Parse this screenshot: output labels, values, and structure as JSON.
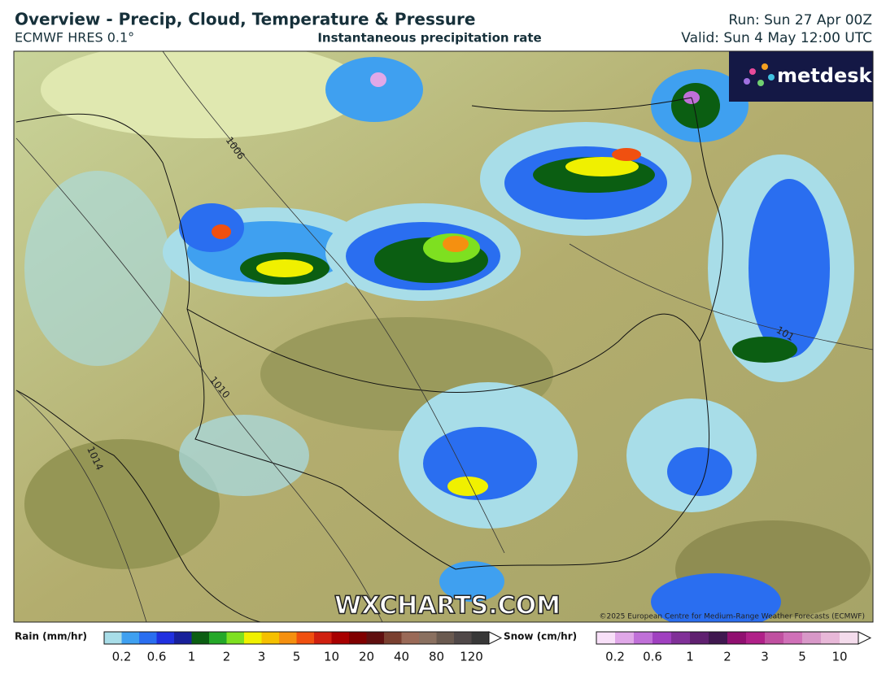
{
  "header": {
    "title": "Overview - Precip, Cloud, Temperature & Pressure",
    "model": "ECMWF HRES 0.1°",
    "layer": "Instantaneous precipitation rate",
    "run": "Run: Sun 27 Apr 00Z",
    "valid": "Valid: Sun 4 May 12:00 UTC"
  },
  "map": {
    "logo": "metdesk",
    "watermark": "WXCHARTS.COM",
    "copyright": "©2025 European Centre for Medium-Range Weather Forecasts (ECMWF)",
    "isobars": [
      "1006",
      "1010",
      "1014",
      "101"
    ]
  },
  "legend": {
    "rain": {
      "title": "Rain (mm/hr)",
      "labels": [
        "0.2",
        "0.6",
        "1",
        "2",
        "3",
        "5",
        "10",
        "20",
        "40",
        "80",
        "120"
      ],
      "colors": [
        "#a8dde8",
        "#3fa0f0",
        "#2a6ef0",
        "#2030e0",
        "#18209a",
        "#0b5e12",
        "#24a828",
        "#7ee020",
        "#f0f000",
        "#f5c000",
        "#f59010",
        "#f05010",
        "#d02010",
        "#a80000",
        "#800000",
        "#601010",
        "#7a4030",
        "#9a6a58",
        "#8a7060",
        "#6a5a50",
        "#504848",
        "#383838"
      ]
    },
    "snow": {
      "title": "Snow (cm/hr)",
      "labels": [
        "0.2",
        "0.6",
        "1",
        "2",
        "3",
        "5",
        "10"
      ],
      "colors": [
        "#f8e0f8",
        "#e0a8e8",
        "#c070d8",
        "#a040c0",
        "#803098",
        "#602070",
        "#401850",
        "#901070",
        "#b02088",
        "#c050a0",
        "#d070b8",
        "#d898c8",
        "#e8b8d8",
        "#f4dcec"
      ]
    }
  }
}
